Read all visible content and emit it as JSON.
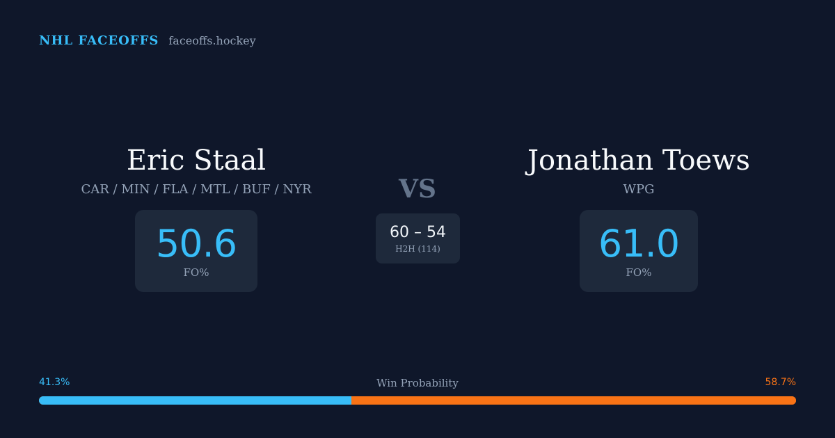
{
  "brand": {
    "name": "NHL FACEOFFS",
    "domain": "faceoffs.hockey"
  },
  "player_left": {
    "name": "Eric Staal",
    "teams": "CAR / MIN / FLA / MTL / BUF / NYR",
    "stat_value": "50.6",
    "stat_label": "FO%"
  },
  "vs_label": "VS",
  "h2h": {
    "score": "60 – 54",
    "label": "H2H (114)"
  },
  "player_right": {
    "name": "Jonathan Toews",
    "teams": "WPG",
    "stat_value": "61.0",
    "stat_label": "FO%"
  },
  "win_probability": {
    "title": "Win Probability",
    "left_label": "41.3%",
    "right_label": "58.7%",
    "left_fraction": 0.413,
    "right_fraction": 0.587,
    "left_color": "#38bdf8",
    "right_color": "#f97316"
  },
  "colors": {
    "background": "#0f172a",
    "card": "#1e293b",
    "accent": "#38bdf8",
    "muted": "#94a3b8"
  }
}
